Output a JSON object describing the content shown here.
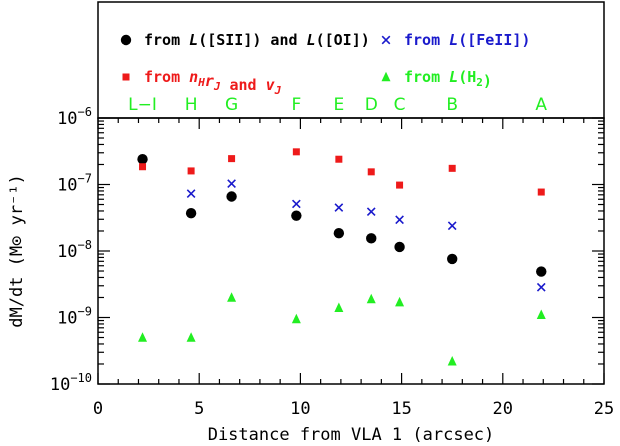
{
  "chart_data": {
    "type": "scatter",
    "xlabel": "Distance from VLA 1 (arcsec)",
    "ylabel": "dM/dt (M⊙ yr⁻¹)",
    "xlim": [
      0,
      25
    ],
    "ylim_log10": [
      -10,
      -6
    ],
    "yscale": "log",
    "x_ticks": [
      0,
      5,
      10,
      15,
      20,
      25
    ],
    "x_tick_labels": [
      "0",
      "5",
      "10",
      "15",
      "20",
      "25"
    ],
    "y_tick_labels": [
      {
        "exp": -10,
        "label": "10",
        "sup": "−10"
      },
      {
        "exp": -9,
        "label": "10",
        "sup": "−9"
      },
      {
        "exp": -8,
        "label": "10",
        "sup": "−8"
      },
      {
        "exp": -7,
        "label": "10",
        "sup": "−7"
      },
      {
        "exp": -6,
        "label": "10",
        "sup": "−6"
      }
    ],
    "knots": [
      {
        "label": "L−I",
        "x": 2.2
      },
      {
        "label": "H",
        "x": 4.6
      },
      {
        "label": "G",
        "x": 6.6
      },
      {
        "label": "F",
        "x": 9.8
      },
      {
        "label": "E",
        "x": 11.9
      },
      {
        "label": "D",
        "x": 13.5
      },
      {
        "label": "C",
        "x": 14.9
      },
      {
        "label": "B",
        "x": 17.5
      },
      {
        "label": "A",
        "x": 21.9
      }
    ],
    "knot_color": "#22ee22",
    "series": [
      {
        "name": "from L([SII]) and L([OI])",
        "marker": "circle",
        "color": "#000000",
        "x": [
          2.2,
          4.6,
          6.6,
          9.8,
          11.9,
          13.5,
          14.9,
          17.5,
          21.9
        ],
        "y": [
          2.4e-07,
          3.7e-08,
          6.6e-08,
          3.4e-08,
          1.85e-08,
          1.55e-08,
          1.15e-08,
          7.6e-09,
          4.9e-09
        ]
      },
      {
        "name": "from L([FeII])",
        "marker": "cross",
        "color": "#1a1acc",
        "x": [
          4.6,
          6.6,
          9.8,
          11.9,
          13.5,
          14.9,
          17.5,
          21.9
        ],
        "y": [
          7.3e-08,
          1.03e-07,
          5.1e-08,
          4.5e-08,
          3.9e-08,
          2.95e-08,
          2.4e-08,
          2.85e-09
        ]
      },
      {
        "name": "from n_H r_J and v_J",
        "marker": "square",
        "color": "#ee1a1a",
        "x": [
          2.2,
          4.6,
          6.6,
          9.8,
          11.9,
          13.5,
          14.9,
          17.5,
          21.9
        ],
        "y": [
          1.85e-07,
          1.6e-07,
          2.45e-07,
          3.1e-07,
          2.4e-07,
          1.55e-07,
          9.8e-08,
          1.75e-07,
          7.7e-08
        ]
      },
      {
        "name": "from L(H2)",
        "marker": "triangle",
        "color": "#22ee22",
        "x": [
          2.2,
          4.6,
          6.6,
          9.8,
          11.9,
          13.5,
          14.9,
          17.5,
          21.9
        ],
        "y": [
          5e-10,
          5e-10,
          2e-09,
          9.5e-10,
          1.4e-09,
          1.9e-09,
          1.7e-09,
          2.2e-10,
          1.1e-09
        ]
      }
    ],
    "legend": [
      {
        "series": 0,
        "parts": [
          {
            "t": "from "
          },
          {
            "t": "L",
            "i": true
          },
          {
            "t": "([SII]) and "
          },
          {
            "t": "L",
            "i": true
          },
          {
            "t": "([OI])"
          }
        ]
      },
      {
        "series": 1,
        "parts": [
          {
            "t": "from "
          },
          {
            "t": "L",
            "i": true
          },
          {
            "t": "([FeII])"
          }
        ]
      },
      {
        "series": 2,
        "parts": [
          {
            "t": "from "
          },
          {
            "t": "n",
            "i": true
          },
          {
            "t": "H",
            "i": true,
            "sub": true
          },
          {
            "t": "r",
            "i": true
          },
          {
            "t": "J",
            "i": true,
            "sub": true
          },
          {
            "t": " and "
          },
          {
            "t": "v",
            "i": true
          },
          {
            "t": "J",
            "i": true,
            "sub": true
          }
        ]
      },
      {
        "series": 3,
        "parts": [
          {
            "t": "from "
          },
          {
            "t": "L",
            "i": true
          },
          {
            "t": "(H"
          },
          {
            "t": "2",
            "sub": true
          },
          {
            "t": ")"
          }
        ]
      }
    ],
    "legend_placement": "top panel above plot",
    "grid": false
  }
}
